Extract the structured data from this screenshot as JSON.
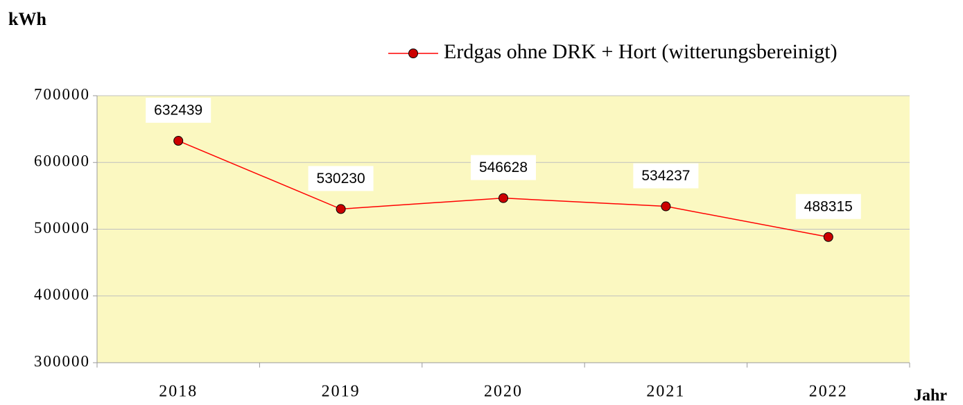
{
  "chart_data": {
    "type": "line",
    "y_label": "kWh",
    "x_label": "Jahr",
    "categories": [
      "2018",
      "2019",
      "2020",
      "2021",
      "2022"
    ],
    "series": [
      {
        "name": "Erdgas ohne DRK + Hort (witterungsbereinigt)",
        "color": "#ff0000",
        "marker_color": "#cc0000",
        "values": [
          632439,
          530230,
          546628,
          534237,
          488315
        ]
      }
    ],
    "ylim": [
      300000,
      700000
    ],
    "yticks": [
      300000,
      400000,
      500000,
      600000,
      700000
    ],
    "grid": true,
    "plot_background": "#fbf8c1"
  }
}
